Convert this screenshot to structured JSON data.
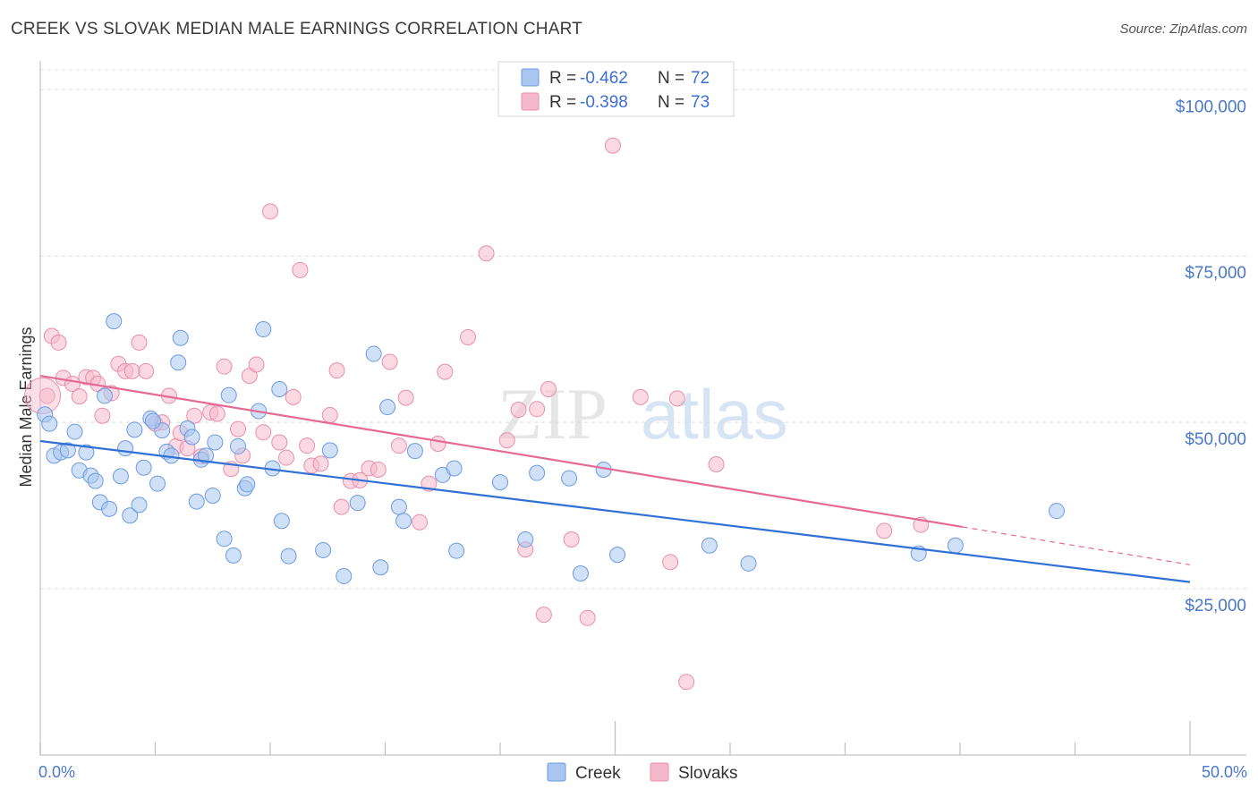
{
  "title": "CREEK VS SLOVAK MEDIAN MALE EARNINGS CORRELATION CHART",
  "source": "Source: ZipAtlas.com",
  "watermark": {
    "zip": "ZIP",
    "atlas": "atlas"
  },
  "colors": {
    "creek_fill": "#a8c6f0",
    "creek_stroke": "#6d9be0",
    "creek_line": "#2f6fd6",
    "slovak_fill": "#f6b9cb",
    "slovak_stroke": "#ea8eab",
    "slovak_line": "#e46a95",
    "grid": "#dcdcdc",
    "axis_label": "#4a78c8"
  },
  "legend": {
    "rows": [
      {
        "r_label": "R =",
        "r_value": "-0.462",
        "n_label": "N =",
        "n_value": "72"
      },
      {
        "r_label": "R =",
        "r_value": "-0.398",
        "n_label": "N =",
        "n_value": "73"
      }
    ]
  },
  "chart_data": {
    "type": "scatter",
    "title": "CREEK VS SLOVAK MEDIAN MALE EARNINGS CORRELATION CHART",
    "xlabel": "",
    "ylabel": "Median Male Earnings",
    "xlim": [
      0,
      50
    ],
    "ylim": [
      0,
      103000
    ],
    "x_tick_labels": [
      "0.0%",
      "50.0%"
    ],
    "y_ticks": [
      25000,
      50000,
      75000,
      100000
    ],
    "y_tick_labels": [
      "$25,000",
      "$50,000",
      "$75,000",
      "$100,000"
    ],
    "legend_labels": [
      "Creek",
      "Slovaks"
    ],
    "series": [
      {
        "name": "Creek",
        "trend": {
          "x": [
            0,
            50
          ],
          "y": [
            47200,
            26000
          ]
        },
        "points": [
          [
            0.2,
            51200
          ],
          [
            0.4,
            49800
          ],
          [
            0.6,
            45000
          ],
          [
            0.9,
            45500
          ],
          [
            1.2,
            45800
          ],
          [
            1.5,
            48600
          ],
          [
            1.7,
            42800
          ],
          [
            2.0,
            45500
          ],
          [
            2.2,
            42000
          ],
          [
            2.4,
            41200
          ],
          [
            2.6,
            38000
          ],
          [
            2.8,
            54000
          ],
          [
            3.0,
            37000
          ],
          [
            3.2,
            65200
          ],
          [
            3.5,
            41900
          ],
          [
            3.7,
            46100
          ],
          [
            3.9,
            36000
          ],
          [
            4.1,
            48900
          ],
          [
            4.3,
            37600
          ],
          [
            4.5,
            43200
          ],
          [
            4.8,
            50600
          ],
          [
            5.1,
            40800
          ],
          [
            5.3,
            48800
          ],
          [
            5.5,
            45600
          ],
          [
            5.7,
            45000
          ],
          [
            6.0,
            59000
          ],
          [
            6.1,
            62700
          ],
          [
            6.4,
            49100
          ],
          [
            6.6,
            47800
          ],
          [
            6.8,
            38100
          ],
          [
            7.0,
            44400
          ],
          [
            7.2,
            45000
          ],
          [
            7.5,
            39000
          ],
          [
            7.6,
            47000
          ],
          [
            8.0,
            32500
          ],
          [
            8.2,
            54100
          ],
          [
            8.4,
            30000
          ],
          [
            8.6,
            46400
          ],
          [
            8.9,
            40100
          ],
          [
            9.0,
            40700
          ],
          [
            9.5,
            51700
          ],
          [
            9.7,
            64000
          ],
          [
            10.1,
            43100
          ],
          [
            10.5,
            35200
          ],
          [
            10.8,
            29900
          ],
          [
            10.4,
            55000
          ],
          [
            12.3,
            30800
          ],
          [
            12.6,
            45800
          ],
          [
            13.2,
            26900
          ],
          [
            13.8,
            37900
          ],
          [
            14.5,
            60300
          ],
          [
            14.8,
            28200
          ],
          [
            15.1,
            52300
          ],
          [
            15.6,
            37300
          ],
          [
            15.8,
            35200
          ],
          [
            16.3,
            45700
          ],
          [
            17.5,
            42100
          ],
          [
            18.0,
            43100
          ],
          [
            18.1,
            30700
          ],
          [
            20.0,
            41000
          ],
          [
            21.1,
            32400
          ],
          [
            21.6,
            42400
          ],
          [
            23.0,
            41600
          ],
          [
            23.5,
            27300
          ],
          [
            24.5,
            42900
          ],
          [
            25.1,
            30100
          ],
          [
            29.1,
            31500
          ],
          [
            30.8,
            28800
          ],
          [
            38.2,
            30300
          ],
          [
            39.8,
            31500
          ],
          [
            44.2,
            36700
          ],
          [
            4.9,
            50200
          ]
        ]
      },
      {
        "name": "Slovaks",
        "trend": {
          "x": [
            0,
            40.1
          ],
          "y": [
            57000,
            34300
          ]
        },
        "trend_dashed": {
          "x": [
            40.1,
            50
          ],
          "y": [
            34300,
            28600
          ]
        },
        "points": [
          [
            0.3,
            54000
          ],
          [
            0.5,
            63000
          ],
          [
            0.8,
            62000
          ],
          [
            1.0,
            56700
          ],
          [
            1.4,
            55800
          ],
          [
            1.7,
            53900
          ],
          [
            2.0,
            56800
          ],
          [
            2.3,
            56700
          ],
          [
            2.5,
            55800
          ],
          [
            2.7,
            51000
          ],
          [
            3.1,
            54400
          ],
          [
            3.4,
            58800
          ],
          [
            3.7,
            57700
          ],
          [
            4.0,
            57700
          ],
          [
            4.3,
            62000
          ],
          [
            4.6,
            57700
          ],
          [
            5.0,
            49800
          ],
          [
            5.3,
            50000
          ],
          [
            5.6,
            54000
          ],
          [
            5.9,
            46400
          ],
          [
            6.1,
            48400
          ],
          [
            6.4,
            46100
          ],
          [
            6.7,
            51000
          ],
          [
            7.0,
            44900
          ],
          [
            7.4,
            51500
          ],
          [
            7.7,
            51300
          ],
          [
            8.0,
            58400
          ],
          [
            8.3,
            43000
          ],
          [
            8.6,
            49000
          ],
          [
            8.8,
            45000
          ],
          [
            9.1,
            57000
          ],
          [
            9.4,
            58700
          ],
          [
            9.7,
            48500
          ],
          [
            10.0,
            81700
          ],
          [
            10.4,
            47000
          ],
          [
            10.7,
            44700
          ],
          [
            11.0,
            53800
          ],
          [
            11.3,
            72900
          ],
          [
            11.6,
            46500
          ],
          [
            11.8,
            43500
          ],
          [
            12.2,
            43800
          ],
          [
            12.6,
            51100
          ],
          [
            12.9,
            57800
          ],
          [
            13.1,
            37300
          ],
          [
            13.5,
            41200
          ],
          [
            13.9,
            41300
          ],
          [
            14.3,
            43100
          ],
          [
            14.7,
            42900
          ],
          [
            15.2,
            59100
          ],
          [
            15.6,
            46500
          ],
          [
            15.9,
            53700
          ],
          [
            16.5,
            35000
          ],
          [
            16.9,
            40800
          ],
          [
            17.3,
            46800
          ],
          [
            17.6,
            57600
          ],
          [
            18.6,
            62800
          ],
          [
            19.4,
            75400
          ],
          [
            20.3,
            47300
          ],
          [
            20.8,
            51900
          ],
          [
            21.1,
            30900
          ],
          [
            21.6,
            52000
          ],
          [
            21.9,
            21100
          ],
          [
            22.1,
            55000
          ],
          [
            23.1,
            32400
          ],
          [
            23.8,
            20600
          ],
          [
            24.9,
            91600
          ],
          [
            26.1,
            53800
          ],
          [
            27.4,
            29000
          ],
          [
            27.7,
            53600
          ],
          [
            28.1,
            11000
          ],
          [
            29.4,
            43700
          ],
          [
            36.7,
            33700
          ],
          [
            38.3,
            34600
          ]
        ]
      }
    ]
  }
}
